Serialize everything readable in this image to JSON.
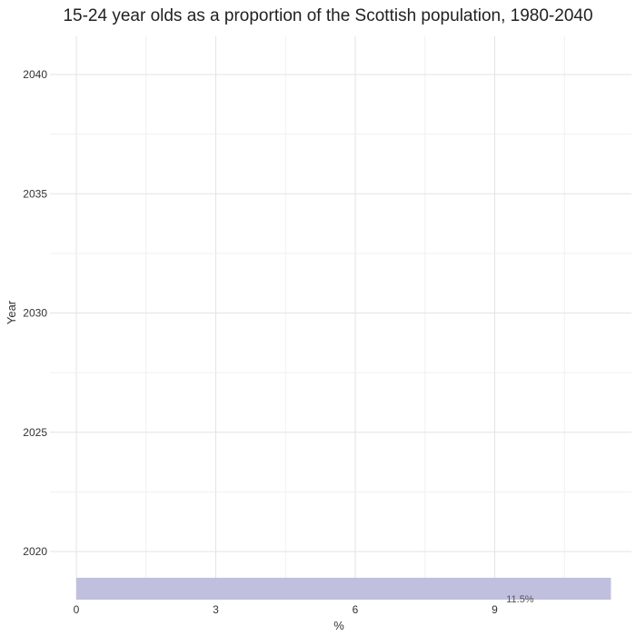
{
  "chart_data": {
    "type": "bar",
    "orientation": "horizontal",
    "title": "15-24 year olds as a proportion of the Scottish population, 1980-2040",
    "xlabel": "%",
    "ylabel": "Year",
    "xlim": [
      0,
      11.5
    ],
    "ylim": [
      2018.2,
      2041
    ],
    "xticks": [
      0,
      3,
      6,
      9
    ],
    "yticks": [
      2020,
      2025,
      2030,
      2035,
      2040
    ],
    "grid": true,
    "bar_color": "#c0c0de",
    "bars": [
      {
        "year": 2018,
        "value": 11.5,
        "label": "11.5%"
      }
    ]
  }
}
